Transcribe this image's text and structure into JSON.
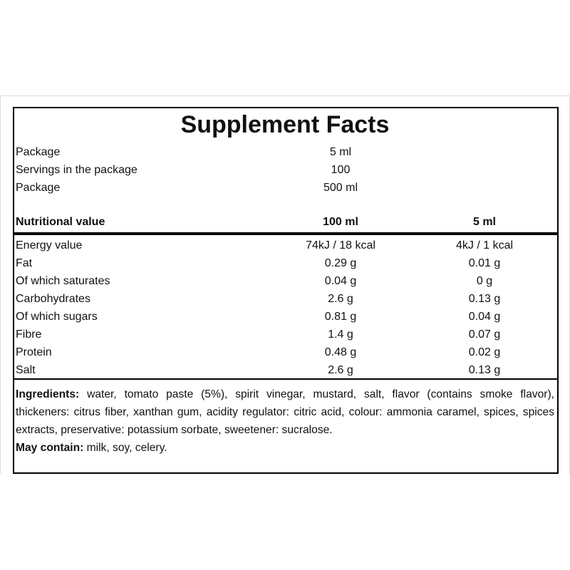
{
  "title": "Supplement Facts",
  "package_info": [
    {
      "label": "Package",
      "value": "5 ml"
    },
    {
      "label": "Servings in the package",
      "value": "100"
    },
    {
      "label": "Package",
      "value": "500 ml"
    }
  ],
  "table": {
    "header": [
      "Nutritional value",
      "100 ml",
      "5 ml"
    ],
    "rows": [
      [
        "Energy value",
        "74kJ / 18 kcal",
        "4kJ / 1 kcal"
      ],
      [
        "Fat",
        "0.29 g",
        "0.01 g"
      ],
      [
        "Of which saturates",
        "0.04 g",
        "0 g"
      ],
      [
        "Carbohydrates",
        "2.6 g",
        "0.13 g"
      ],
      [
        "Of which sugars",
        "0.81 g",
        "0.04 g"
      ],
      [
        "Fibre",
        "1.4 g",
        "0.07 g"
      ],
      [
        "Protein",
        "0.48 g",
        "0.02 g"
      ],
      [
        "Salt",
        "2.6 g",
        "0.13 g"
      ]
    ]
  },
  "ingredients": {
    "label": "Ingredients:",
    "text": "water, tomato paste (5%), spirit vinegar, mustard, salt, flavor (contains smoke flavor), thickeners: citrus fiber, xanthan gum, acidity regulator: citric acid, colour: ammonia caramel, spices, spices extracts, preservative: potassium sorbate, sweetener: sucralose."
  },
  "may_contain": {
    "label": "May contain:",
    "text": "milk, soy, celery."
  }
}
